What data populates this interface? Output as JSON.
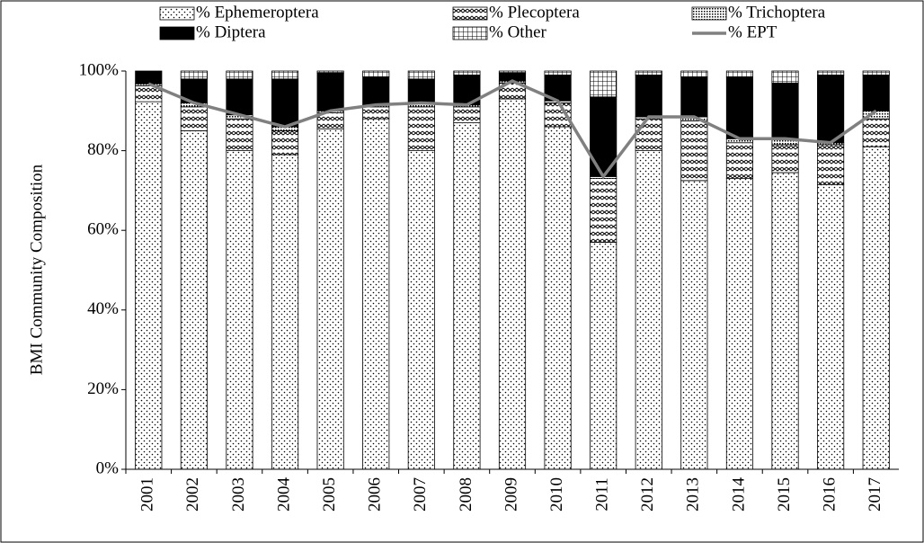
{
  "chart_data": {
    "type": "bar",
    "stacked": true,
    "y_label": "BMI Community Composition",
    "categories": [
      "2001",
      "2002",
      "2003",
      "2004",
      "2005",
      "2006",
      "2007",
      "2008",
      "2009",
      "2010",
      "2011",
      "2012",
      "2013",
      "2014",
      "2015",
      "2016",
      "2017"
    ],
    "series": [
      {
        "name": "% Ephemeroptera",
        "pattern": "dots",
        "color": "#000000",
        "values": [
          92.3,
          85,
          80,
          79,
          85.5,
          88,
          80,
          87,
          93,
          86,
          57,
          80,
          72.5,
          73,
          74.5,
          71.5,
          81
        ]
      },
      {
        "name": "% Plecoptera",
        "pattern": "zigzag",
        "color": "#000000",
        "values": [
          4,
          6,
          8,
          6,
          4,
          3,
          11,
          4,
          4,
          6,
          16,
          8,
          15,
          9,
          7,
          10,
          7
        ]
      },
      {
        "name": "% Trichoptera",
        "pattern": "dense",
        "color": "#000000",
        "values": [
          0.5,
          1,
          1,
          1,
          0.5,
          0.5,
          1,
          0.5,
          0.5,
          0.5,
          0.5,
          0.5,
          1,
          1,
          1.5,
          0.5,
          2
        ]
      },
      {
        "name": "% Diptera",
        "pattern": "solid",
        "color": "#000000",
        "values": [
          3.2,
          6,
          9,
          12,
          9.5,
          7,
          6,
          7.5,
          2,
          6.5,
          20,
          10.5,
          10,
          15.5,
          14,
          17,
          9
        ]
      },
      {
        "name": "% Other",
        "pattern": "grid",
        "color": "#000000",
        "values": [
          0,
          2,
          2,
          2,
          0.5,
          1.5,
          2,
          1,
          0.5,
          1,
          6.5,
          1,
          1.5,
          1.5,
          3,
          1,
          1
        ]
      },
      {
        "name": "% EPT",
        "type": "line",
        "color": "#808080",
        "values": [
          96.8,
          92,
          89,
          86,
          90,
          91.5,
          92,
          91.5,
          97.5,
          92.5,
          73.5,
          88.5,
          88.5,
          83,
          83,
          82,
          90
        ]
      }
    ],
    "ylim": [
      0,
      100
    ],
    "yticks": [
      {
        "value": 0,
        "label": "0%"
      },
      {
        "value": 20,
        "label": "20%"
      },
      {
        "value": 40,
        "label": "40%"
      },
      {
        "value": 60,
        "label": "60%"
      },
      {
        "value": 80,
        "label": "80%"
      },
      {
        "value": 100,
        "label": "100%"
      }
    ],
    "legend": "top"
  }
}
